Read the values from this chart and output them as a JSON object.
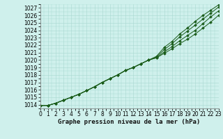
{
  "title": "Graphe pression niveau de la mer (hPa)",
  "bg_color": "#cff0ec",
  "grid_color": "#a8d8d0",
  "line_color": "#1a5c1a",
  "xlim": [
    0,
    23
  ],
  "ylim": [
    1013.5,
    1027.5
  ],
  "yticks": [
    1014,
    1015,
    1016,
    1017,
    1018,
    1019,
    1020,
    1021,
    1022,
    1023,
    1024,
    1025,
    1026,
    1027
  ],
  "xticks": [
    0,
    1,
    2,
    3,
    4,
    5,
    6,
    7,
    8,
    9,
    10,
    11,
    12,
    13,
    14,
    15,
    16,
    17,
    18,
    19,
    20,
    21,
    22,
    23
  ],
  "series": [
    [
      1013.9,
      1013.9,
      1014.2,
      1014.6,
      1015.0,
      1015.4,
      1015.9,
      1016.4,
      1017.0,
      1017.5,
      1018.0,
      1018.6,
      1019.0,
      1019.5,
      1020.0,
      1020.3,
      1020.9,
      1021.5,
      1022.2,
      1022.8,
      1023.5,
      1024.3,
      1025.1,
      1026.0
    ],
    [
      1013.9,
      1013.9,
      1014.2,
      1014.6,
      1015.0,
      1015.4,
      1015.9,
      1016.4,
      1017.0,
      1017.5,
      1018.0,
      1018.6,
      1019.0,
      1019.5,
      1020.0,
      1020.3,
      1021.1,
      1021.8,
      1022.6,
      1023.3,
      1024.0,
      1024.9,
      1025.8,
      1026.6
    ],
    [
      1013.9,
      1013.9,
      1014.2,
      1014.6,
      1015.0,
      1015.4,
      1015.9,
      1016.4,
      1017.0,
      1017.5,
      1018.0,
      1018.6,
      1019.0,
      1019.5,
      1020.0,
      1020.4,
      1021.4,
      1022.2,
      1023.1,
      1023.9,
      1024.7,
      1025.5,
      1026.3,
      1027.1
    ],
    [
      1013.9,
      1013.9,
      1014.2,
      1014.6,
      1015.0,
      1015.4,
      1015.9,
      1016.4,
      1017.0,
      1017.5,
      1018.0,
      1018.6,
      1019.0,
      1019.5,
      1020.0,
      1020.5,
      1021.7,
      1022.5,
      1023.5,
      1024.3,
      1025.2,
      1026.0,
      1026.7,
      1027.4
    ]
  ],
  "tick_fontsize": 5.5,
  "title_fontsize": 6.5,
  "marker": "D",
  "markersize": 2.0,
  "linewidth": 0.7
}
